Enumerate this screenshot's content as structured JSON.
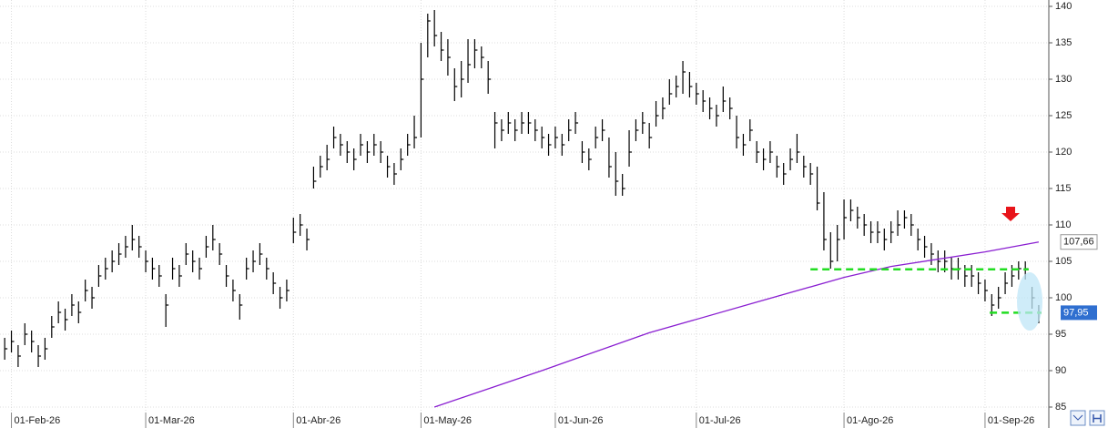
{
  "chart_data": {
    "type": "ohlc",
    "color": "#000000",
    "grid": true,
    "ylim": [
      85,
      140
    ],
    "yticks": [
      85,
      90,
      95,
      100,
      105,
      110,
      115,
      120,
      125,
      130,
      135,
      140
    ],
    "xlim": [
      -0.7,
      155.5
    ],
    "xticks": [
      {
        "value": 1,
        "label": "01-Feb-26"
      },
      {
        "value": 21,
        "label": "01-Mar-26"
      },
      {
        "value": 43,
        "label": "01-Abr-26"
      },
      {
        "value": 62,
        "label": "01-May-26"
      },
      {
        "value": 82,
        "label": "01-Jun-26"
      },
      {
        "value": 103,
        "label": "01-Jul-26"
      },
      {
        "value": 125,
        "label": "01-Ago-26"
      },
      {
        "value": 146,
        "label": "01-Sep-26"
      }
    ],
    "close": [
      93,
      94,
      92,
      95,
      94,
      92,
      93,
      96,
      98,
      97,
      99,
      98,
      101,
      100,
      103,
      104,
      105,
      106,
      107,
      108,
      107,
      105,
      104,
      103,
      99,
      104,
      103,
      106,
      105,
      104,
      107,
      108,
      106,
      103,
      101,
      99,
      104,
      105,
      106,
      104,
      102,
      100,
      101,
      109,
      110,
      108,
      116,
      118,
      119,
      122,
      121,
      120,
      119,
      121,
      120,
      121,
      120,
      118,
      117,
      119,
      121,
      122,
      130,
      138,
      136,
      134,
      133,
      129,
      130,
      132,
      134,
      133,
      130,
      124,
      123,
      124,
      123,
      124,
      124,
      123,
      122,
      121,
      122,
      121,
      123,
      124,
      120,
      119,
      122,
      123,
      118,
      116,
      115,
      120,
      123,
      124,
      122,
      125,
      126,
      128,
      129,
      131,
      129,
      128,
      127,
      126,
      125,
      127,
      126,
      122,
      121,
      123,
      120,
      119,
      120,
      118,
      117,
      119,
      120,
      118,
      117,
      113,
      108,
      105,
      108,
      111,
      112,
      111,
      110,
      109,
      109,
      108,
      109,
      110,
      111,
      110,
      108,
      107,
      106,
      105,
      105,
      104,
      104,
      103,
      103,
      102,
      101,
      99,
      100,
      102,
      103,
      104,
      104,
      100,
      97.95
    ],
    "high": [
      94.5,
      95.5,
      93.5,
      96.5,
      95.5,
      93.5,
      94.5,
      97.5,
      99.5,
      98.5,
      100.5,
      99.5,
      102.5,
      101.5,
      104.5,
      105.5,
      106.5,
      107.5,
      108.5,
      110,
      108.5,
      106.5,
      105.5,
      104.5,
      100.5,
      105.5,
      104.5,
      107.5,
      106.5,
      105.5,
      108.5,
      110,
      107.5,
      104.5,
      102.5,
      100.5,
      105.5,
      106.5,
      107.5,
      105.5,
      103.5,
      101.5,
      102.5,
      111,
      111.5,
      109.5,
      118,
      119.5,
      121,
      123.5,
      122.5,
      121.5,
      120.5,
      122.5,
      121.5,
      122.5,
      121.5,
      119.5,
      118.5,
      120.5,
      122.5,
      125,
      135,
      139,
      139.5,
      136.5,
      135.5,
      131.5,
      132.5,
      135.5,
      135.5,
      134.5,
      132.5,
      125.5,
      124.5,
      125.5,
      124.5,
      125.5,
      125.5,
      124.5,
      123.5,
      122.5,
      123.5,
      122.5,
      124.5,
      125.5,
      121.5,
      120.5,
      123.5,
      124.5,
      122,
      120,
      117,
      123,
      124.5,
      125.5,
      124,
      127,
      127.5,
      130,
      130.5,
      132.5,
      131,
      129.5,
      128.5,
      127.5,
      126.5,
      129,
      127.5,
      125,
      122.5,
      124.5,
      121.5,
      120.5,
      121.5,
      119.5,
      118.5,
      120.5,
      122.5,
      119.5,
      118.5,
      118,
      114.5,
      109,
      110,
      113.5,
      113.5,
      112.5,
      111.5,
      110.5,
      110.5,
      109.5,
      110.5,
      112,
      112,
      111.5,
      109.5,
      108.5,
      107.5,
      106.5,
      106.5,
      105.5,
      105.5,
      104.5,
      104.5,
      103.5,
      102.5,
      100.5,
      101.5,
      103.5,
      104.5,
      105,
      105,
      101.5,
      99
    ],
    "low": [
      91.5,
      92.5,
      90.5,
      93.5,
      92.5,
      90.5,
      91.5,
      94.5,
      96.5,
      95.5,
      97.5,
      96.5,
      99.5,
      98.5,
      101.5,
      102.5,
      103.5,
      104.5,
      105.5,
      106.5,
      105.5,
      103.5,
      102.5,
      101.5,
      96,
      102.5,
      101.5,
      104.5,
      103.5,
      102.5,
      105.5,
      106.5,
      104.5,
      101.5,
      99.5,
      97,
      102.5,
      103.5,
      104.5,
      102.5,
      100.5,
      98.5,
      99.5,
      107.5,
      108.5,
      106.5,
      115,
      116.5,
      117.5,
      120.5,
      119.5,
      118.5,
      117.5,
      119.5,
      118.5,
      119.5,
      118.5,
      116.5,
      115.5,
      117.5,
      119.5,
      120.5,
      122,
      133,
      134.5,
      132.5,
      130.5,
      127,
      127.5,
      129.5,
      131.5,
      131.5,
      128,
      120.5,
      121.5,
      122.5,
      121.5,
      122.5,
      122.5,
      121.5,
      120.5,
      119.5,
      120.5,
      119.5,
      121.5,
      122.5,
      118.5,
      117.5,
      120.5,
      121.5,
      116.5,
      114,
      114,
      118,
      121.5,
      122.5,
      120.5,
      123.5,
      124.5,
      126.5,
      127.5,
      128,
      127.5,
      126.5,
      125.5,
      124.5,
      123.5,
      125.5,
      124.5,
      120.5,
      119.5,
      121.5,
      118.5,
      117.5,
      118.5,
      116.5,
      115.5,
      117.5,
      118.5,
      116.5,
      115.5,
      112,
      106.5,
      104,
      105,
      108,
      110.5,
      109.5,
      108.5,
      107.5,
      107.5,
      106.5,
      107.5,
      108.5,
      109.5,
      108.5,
      106.5,
      105.5,
      104.5,
      103.5,
      103.5,
      102.5,
      102.5,
      101.5,
      101.5,
      100.5,
      99.5,
      97.5,
      98.5,
      100.5,
      101.5,
      102.5,
      102.5,
      98.5,
      96.5
    ],
    "moving_average": {
      "color": "#8a1fd1",
      "x": [
        64,
        80,
        96,
        112,
        125,
        132,
        146,
        154
      ],
      "values": [
        85,
        90,
        95.2,
        99.4,
        102.8,
        104.3,
        106.3,
        107.66
      ],
      "value_label": "107,66"
    },
    "last_close_label": "97,95",
    "levels": [
      {
        "color": "#22dd22",
        "y": 103.9,
        "x": [
          120,
          152.5
        ]
      },
      {
        "color": "#22dd22",
        "y": 97.95,
        "x": [
          146.7,
          154.4
        ]
      }
    ]
  }
}
